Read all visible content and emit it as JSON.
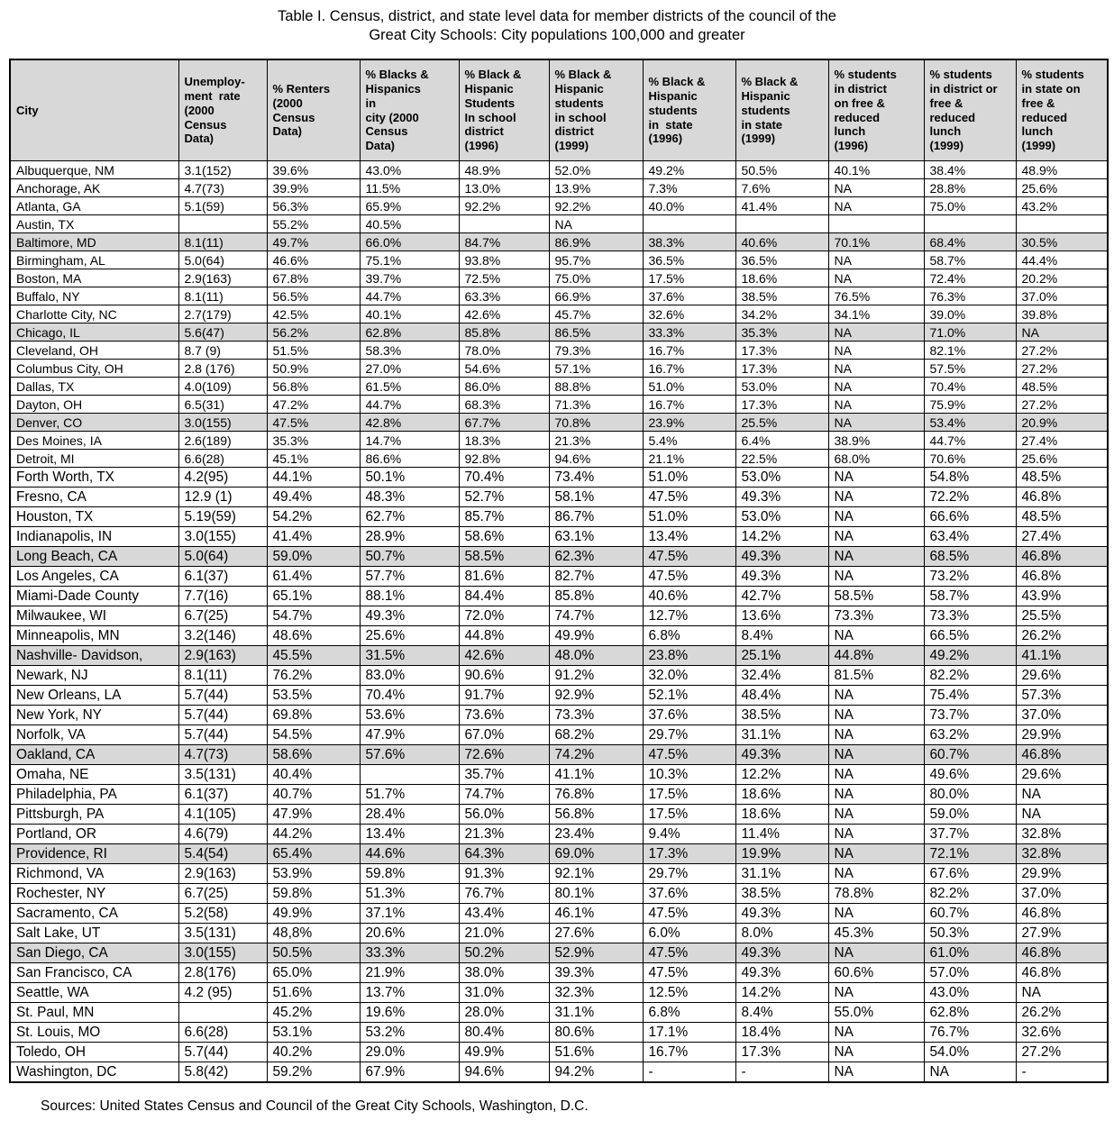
{
  "title": "Table I. Census, district, and state level data for member districts of the council of the\nGreat City Schools: City populations 100,000 and greater",
  "source_note": "Sources: United States Census and Council of the Great City Schools, Washington, D.C.",
  "colors": {
    "row_shade": "#d8d8d8",
    "header_shade": "#d8d8d8",
    "border": "#000000",
    "text": "#000000",
    "background": "#ffffff"
  },
  "table": {
    "columns": [
      "City",
      "Unemploy-\nment  rate\n(2000\nCensus\nData)",
      "% Renters\n(2000\nCensus\nData)",
      "% Blacks &\nHispanics\nin\ncity (2000\nCensus\nData)",
      "% Black &\nHispanic\nStudents\nIn school\ndistrict\n(1996)",
      "% Black &\nHispanic\nstudents\nin school\ndistrict\n(1999)",
      "% Black &\nHispanic\nstudents\nin  state\n(1996)",
      "% Black &\nHispanic\nstudents\nin state\n(1999)",
      "% students\nin district\non free &\nreduced\nlunch\n(1996)",
      "% students\nin district or\nfree &\nreduced\nlunch\n(1999)",
      "% students\nin state on\nfree &\nreduced\nlunch\n(1999)"
    ],
    "rows": [
      {
        "shaded": false,
        "large": false,
        "cells": [
          "Albuquerque, NM",
          "3.1(152)",
          "39.6%",
          "43.0%",
          "48.9%",
          "52.0%",
          "49.2%",
          "50.5%",
          "40.1%",
          "38.4%",
          "48.9%"
        ]
      },
      {
        "shaded": false,
        "large": false,
        "cells": [
          "Anchorage, AK",
          "4.7(73)",
          "39.9%",
          "11.5%",
          "13.0%",
          "13.9%",
          "7.3%",
          "7.6%",
          "NA",
          "28.8%",
          "25.6%"
        ]
      },
      {
        "shaded": false,
        "large": false,
        "cells": [
          "Atlanta, GA",
          "5.1(59)",
          "56.3%",
          "65.9%",
          "92.2%",
          "92.2%",
          "40.0%",
          "41.4%",
          "NA",
          "75.0%",
          "43.2%"
        ]
      },
      {
        "shaded": false,
        "large": false,
        "cells": [
          "Austin, TX",
          "",
          "55.2%",
          "40.5%",
          "",
          "NA",
          "",
          "",
          "",
          "",
          ""
        ]
      },
      {
        "shaded": true,
        "large": false,
        "cells": [
          "Baltimore, MD",
          "8.1(11)",
          "49.7%",
          "66.0%",
          "84.7%",
          "86.9%",
          "38.3%",
          "40.6%",
          "70.1%",
          "68.4%",
          "30.5%"
        ]
      },
      {
        "shaded": false,
        "large": false,
        "cells": [
          "Birmingham, AL",
          "5.0(64)",
          "46.6%",
          "75.1%",
          "93.8%",
          "95.7%",
          "36.5%",
          "36.5%",
          "NA",
          "58.7%",
          "44.4%"
        ]
      },
      {
        "shaded": false,
        "large": false,
        "cells": [
          "Boston, MA",
          "2.9(163)",
          "67.8%",
          "39.7%",
          "72.5%",
          "75.0%",
          "17.5%",
          "18.6%",
          "NA",
          "72.4%",
          "20.2%"
        ]
      },
      {
        "shaded": false,
        "large": false,
        "cells": [
          "Buffalo, NY",
          "8.1(11)",
          "56.5%",
          "44.7%",
          "63.3%",
          "66.9%",
          "37.6%",
          "38.5%",
          "76.5%",
          "76.3%",
          "37.0%"
        ]
      },
      {
        "shaded": false,
        "large": false,
        "cells": [
          "Charlotte City, NC",
          "2.7(179)",
          "42.5%",
          "40.1%",
          "42.6%",
          "45.7%",
          "32.6%",
          "34.2%",
          "34.1%",
          "39.0%",
          "39.8%"
        ]
      },
      {
        "shaded": true,
        "large": false,
        "cells": [
          "Chicago, IL",
          "5.6(47)",
          "56.2%",
          "62.8%",
          "85.8%",
          "86.5%",
          "33.3%",
          "35.3%",
          "NA",
          "71.0%",
          "NA"
        ]
      },
      {
        "shaded": false,
        "large": false,
        "cells": [
          "Cleveland, OH",
          "8.7 (9)",
          "51.5%",
          "58.3%",
          "78.0%",
          "79.3%",
          "16.7%",
          "17.3%",
          "NA",
          "82.1%",
          "27.2%"
        ]
      },
      {
        "shaded": false,
        "large": false,
        "cells": [
          "Columbus City, OH",
          "2.8 (176)",
          "50.9%",
          "27.0%",
          "54.6%",
          "57.1%",
          "16.7%",
          "17.3%",
          "NA",
          "57.5%",
          "27.2%"
        ]
      },
      {
        "shaded": false,
        "large": false,
        "cells": [
          "Dallas, TX",
          "4.0(109)",
          "56.8%",
          "61.5%",
          "86.0%",
          "88.8%",
          "51.0%",
          "53.0%",
          "NA",
          "70.4%",
          "48.5%"
        ]
      },
      {
        "shaded": false,
        "large": false,
        "cells": [
          "Dayton, OH",
          "6.5(31)",
          "47.2%",
          "44.7%",
          "68.3%",
          "71.3%",
          "16.7%",
          "17.3%",
          "NA",
          "75.9%",
          "27.2%"
        ]
      },
      {
        "shaded": true,
        "large": false,
        "cells": [
          "Denver, CO",
          "3.0(155)",
          "47.5%",
          "42.8%",
          "67.7%",
          "70.8%",
          "23.9%",
          "25.5%",
          "NA",
          "53.4%",
          "20.9%"
        ]
      },
      {
        "shaded": false,
        "large": false,
        "cells": [
          "Des Moines, IA",
          "2.6(189)",
          "35.3%",
          "14.7%",
          "18.3%",
          "21.3%",
          "5.4%",
          "6.4%",
          "38.9%",
          "44.7%",
          "27.4%"
        ]
      },
      {
        "shaded": false,
        "large": false,
        "cells": [
          "Detroit, MI",
          "6.6(28)",
          "45.1%",
          "86.6%",
          "92.8%",
          "94.6%",
          "21.1%",
          "22.5%",
          "68.0%",
          "70.6%",
          "25.6%"
        ]
      },
      {
        "shaded": false,
        "large": true,
        "cells": [
          "Forth Worth, TX",
          "4.2(95)",
          "44.1%",
          "50.1%",
          "70.4%",
          "73.4%",
          "51.0%",
          "53.0%",
          "NA",
          "54.8%",
          "48.5%"
        ]
      },
      {
        "shaded": false,
        "large": true,
        "cells": [
          "Fresno, CA",
          "12.9 (1)",
          "49.4%",
          "48.3%",
          "52.7%",
          "58.1%",
          "47.5%",
          "49.3%",
          "NA",
          "72.2%",
          "46.8%"
        ]
      },
      {
        "shaded": false,
        "large": true,
        "cells": [
          "Houston, TX",
          "5.19(59)",
          "54.2%",
          "62.7%",
          "85.7%",
          "86.7%",
          "51.0%",
          "53.0%",
          "NA",
          "66.6%",
          "48.5%"
        ]
      },
      {
        "shaded": false,
        "large": true,
        "cells": [
          "Indianapolis, IN",
          "3.0(155)",
          "41.4%",
          "28.9%",
          "58.6%",
          "63.1%",
          "13.4%",
          "14.2%",
          "NA",
          "63.4%",
          "27.4%"
        ]
      },
      {
        "shaded": true,
        "large": true,
        "cells": [
          "Long Beach, CA",
          "5.0(64)",
          "59.0%",
          "50.7%",
          "58.5%",
          "62.3%",
          "47.5%",
          "49.3%",
          "NA",
          "68.5%",
          "46.8%"
        ]
      },
      {
        "shaded": false,
        "large": true,
        "cells": [
          "Los Angeles, CA",
          "6.1(37)",
          "61.4%",
          "57.7%",
          "81.6%",
          "82.7%",
          "47.5%",
          "49.3%",
          "NA",
          "73.2%",
          "46.8%"
        ]
      },
      {
        "shaded": false,
        "large": true,
        "cells": [
          "Miami-Dade County",
          "7.7(16)",
          "65.1%",
          "88.1%",
          "84.4%",
          "85.8%",
          "40.6%",
          "42.7%",
          "58.5%",
          "58.7%",
          "43.9%"
        ]
      },
      {
        "shaded": false,
        "large": true,
        "cells": [
          "Milwaukee, WI",
          "6.7(25)",
          "54.7%",
          "49.3%",
          "72.0%",
          "74.7%",
          "12.7%",
          "13.6%",
          "73.3%",
          "73.3%",
          "25.5%"
        ]
      },
      {
        "shaded": false,
        "large": true,
        "cells": [
          "Minneapolis, MN",
          "3.2(146)",
          "48.6%",
          "25.6%",
          "44.8%",
          "49.9%",
          "6.8%",
          "8.4%",
          "NA",
          "66.5%",
          "26.2%"
        ]
      },
      {
        "shaded": true,
        "large": true,
        "cells": [
          "Nashville- Davidson,",
          "2.9(163)",
          "45.5%",
          "31.5%",
          "42.6%",
          "48.0%",
          "23.8%",
          "25.1%",
          "44.8%",
          "49.2%",
          "41.1%"
        ]
      },
      {
        "shaded": false,
        "large": true,
        "cells": [
          "Newark, NJ",
          "8.1(11)",
          "76.2%",
          "83.0%",
          "90.6%",
          "91.2%",
          "32.0%",
          "32.4%",
          "81.5%",
          "82.2%",
          "29.6%"
        ]
      },
      {
        "shaded": false,
        "large": true,
        "cells": [
          "New Orleans, LA",
          "5.7(44)",
          "53.5%",
          "70.4%",
          "91.7%",
          "92.9%",
          "52.1%",
          "48.4%",
          "NA",
          "75.4%",
          "57.3%"
        ]
      },
      {
        "shaded": false,
        "large": true,
        "cells": [
          "New York, NY",
          "5.7(44)",
          "69.8%",
          "53.6%",
          "73.6%",
          "73.3%",
          "37.6%",
          "38.5%",
          "NA",
          "73.7%",
          "37.0%"
        ]
      },
      {
        "shaded": false,
        "large": true,
        "cells": [
          "Norfolk, VA",
          "5.7(44)",
          "54.5%",
          "47.9%",
          "67.0%",
          "68.2%",
          "29.7%",
          "31.1%",
          "NA",
          "63.2%",
          "29.9%"
        ]
      },
      {
        "shaded": true,
        "large": true,
        "cells": [
          "Oakland, CA",
          "4.7(73)",
          "58.6%",
          "57.6%",
          "72.6%",
          "74.2%",
          "47.5%",
          "49.3%",
          "NA",
          "60.7%",
          "46.8%"
        ]
      },
      {
        "shaded": false,
        "large": true,
        "cells": [
          "Omaha, NE",
          "3.5(131)",
          "40.4%",
          "",
          "35.7%",
          "41.1%",
          "10.3%",
          "12.2%",
          "NA",
          "49.6%",
          "29.6%"
        ]
      },
      {
        "shaded": false,
        "large": true,
        "cells": [
          "Philadelphia, PA",
          "6.1(37)",
          "40.7%",
          "51.7%",
          "74.7%",
          "76.8%",
          "17.5%",
          "18.6%",
          "NA",
          "80.0%",
          "NA"
        ]
      },
      {
        "shaded": false,
        "large": true,
        "cells": [
          "Pittsburgh, PA",
          "4.1(105)",
          "47.9%",
          "28.4%",
          "56.0%",
          "56.8%",
          "17.5%",
          "18.6%",
          "NA",
          "59.0%",
          "NA"
        ]
      },
      {
        "shaded": false,
        "large": true,
        "cells": [
          "Portland, OR",
          "4.6(79)",
          "44.2%",
          "13.4%",
          "21.3%",
          "23.4%",
          "9.4%",
          "11.4%",
          "NA",
          "37.7%",
          "32.8%"
        ]
      },
      {
        "shaded": true,
        "large": true,
        "cells": [
          "Providence, RI",
          "5.4(54)",
          "65.4%",
          "44.6%",
          "64.3%",
          "69.0%",
          "17.3%",
          "19.9%",
          "NA",
          "72.1%",
          "32.8%"
        ]
      },
      {
        "shaded": false,
        "large": true,
        "cells": [
          "Richmond, VA",
          "2.9(163)",
          "53.9%",
          "59.8%",
          "91.3%",
          "92.1%",
          "29.7%",
          "31.1%",
          "NA",
          "67.6%",
          "29.9%"
        ]
      },
      {
        "shaded": false,
        "large": true,
        "cells": [
          "Rochester, NY",
          "6.7(25)",
          "59.8%",
          "51.3%",
          "76.7%",
          "80.1%",
          "37.6%",
          "38.5%",
          "78.8%",
          "82.2%",
          "37.0%"
        ]
      },
      {
        "shaded": false,
        "large": true,
        "cells": [
          "Sacramento, CA",
          "5.2(58)",
          "49.9%",
          "37.1%",
          "43.4%",
          "46.1%",
          "47.5%",
          "49.3%",
          "NA",
          "60.7%",
          "46.8%"
        ]
      },
      {
        "shaded": false,
        "large": true,
        "cells": [
          "Salt Lake, UT",
          "3.5(131)",
          "48,8%",
          "20.6%",
          "21.0%",
          "27.6%",
          "6.0%",
          "8.0%",
          "45.3%",
          "50.3%",
          "27.9%"
        ]
      },
      {
        "shaded": true,
        "large": true,
        "cells": [
          "San Diego, CA",
          "3.0(155)",
          "50.5%",
          "33.3%",
          "50.2%",
          "52.9%",
          "47.5%",
          "49.3%",
          "NA",
          "61.0%",
          "46.8%"
        ]
      },
      {
        "shaded": false,
        "large": true,
        "cells": [
          "San Francisco, CA",
          "2.8(176)",
          "65.0%",
          "21.9%",
          "38.0%",
          "39.3%",
          "47.5%",
          "49.3%",
          "60.6%",
          "57.0%",
          "46.8%"
        ]
      },
      {
        "shaded": false,
        "large": true,
        "cells": [
          "Seattle, WA",
          "4.2 (95)",
          "51.6%",
          "13.7%",
          "31.0%",
          "32.3%",
          "12.5%",
          "14.2%",
          "NA",
          "43.0%",
          "NA"
        ]
      },
      {
        "shaded": false,
        "large": true,
        "cells": [
          "St. Paul, MN",
          "",
          "45.2%",
          "19.6%",
          "28.0%",
          "31.1%",
          "6.8%",
          "8.4%",
          "55.0%",
          "62.8%",
          "26.2%"
        ]
      },
      {
        "shaded": false,
        "large": true,
        "cells": [
          "St. Louis, MO",
          "6.6(28)",
          "53.1%",
          "53.2%",
          "80.4%",
          "80.6%",
          "17.1%",
          "18.4%",
          "NA",
          "76.7%",
          "32.6%"
        ]
      },
      {
        "shaded": false,
        "large": true,
        "cells": [
          "Toledo, OH",
          "5.7(44)",
          "40.2%",
          "29.0%",
          "49.9%",
          "51.6%",
          "16.7%",
          "17.3%",
          "NA",
          "54.0%",
          "27.2%"
        ]
      },
      {
        "shaded": false,
        "large": true,
        "cells": [
          "Washington, DC",
          "5.8(42)",
          "59.2%",
          "67.9%",
          "94.6%",
          "94.2%",
          "-",
          "-",
          "NA",
          "NA",
          "-"
        ]
      }
    ]
  }
}
